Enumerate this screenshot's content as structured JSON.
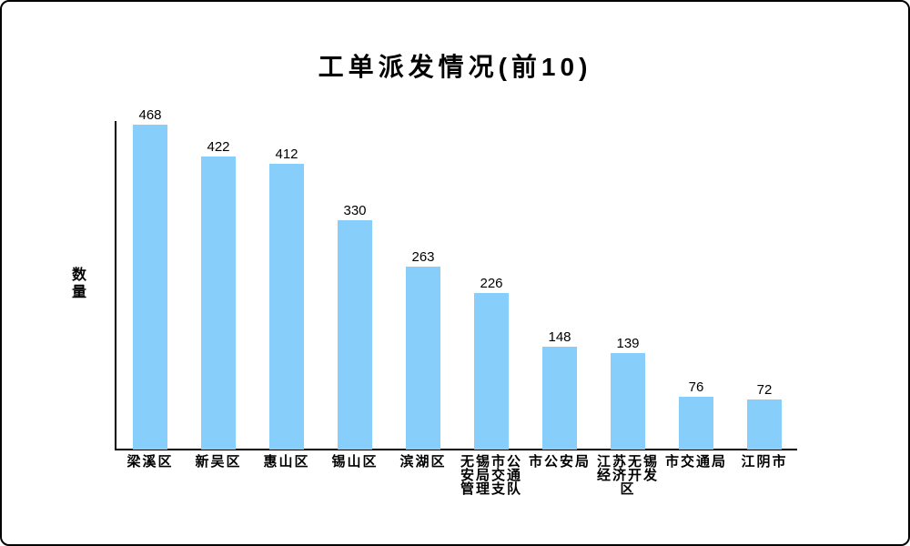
{
  "window": {
    "background": "#ffffff",
    "border_color": "#000000"
  },
  "chart_data": {
    "type": "bar",
    "title": "工单派发情况(前10)",
    "xlabel": "",
    "ylabel": "数量",
    "categories": [
      "梁溪区",
      "新吴区",
      "惠山区",
      "锡山区",
      "滨湖区",
      "无锡市公安局交通管理支队",
      "市公安局",
      "江苏无锡经济开发区",
      "市交通局",
      "江阴市"
    ],
    "values": [
      468,
      422,
      412,
      330,
      263,
      226,
      148,
      139,
      76,
      72
    ],
    "bar_color": "#87CEFA",
    "axis_color": "#000000",
    "text_color": "#000000",
    "ylim": [
      0,
      473
    ],
    "grid": false,
    "legend": false,
    "data_labels": true
  }
}
